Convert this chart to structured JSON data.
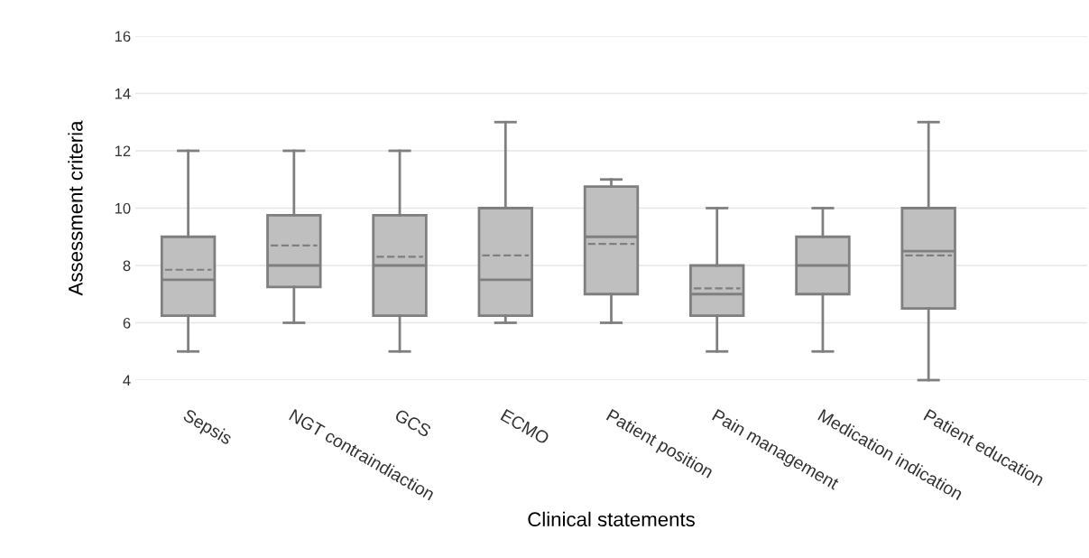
{
  "chart_data": {
    "type": "box",
    "xlabel": "Clinical statements",
    "ylabel": "Assessment criteria",
    "categories": [
      "Sepsis",
      "NGT contraindiaction",
      "GCS",
      "ECMO",
      "Patient position",
      "Pain management",
      "Medication indication",
      "Patient education"
    ],
    "boxes": [
      {
        "low": 5,
        "q1": 6.25,
        "median": 7.5,
        "q3": 9,
        "high": 12,
        "mean": 7.85
      },
      {
        "low": 6,
        "q1": 7.25,
        "median": 8,
        "q3": 9.75,
        "high": 12,
        "mean": 8.7
      },
      {
        "low": 5,
        "q1": 6.25,
        "median": 8,
        "q3": 9.75,
        "high": 12,
        "mean": 8.3
      },
      {
        "low": 6,
        "q1": 6.25,
        "median": 7.5,
        "q3": 10,
        "high": 13,
        "mean": 8.35
      },
      {
        "low": 6,
        "q1": 7,
        "median": 9,
        "q3": 10.75,
        "high": 11,
        "mean": 8.75
      },
      {
        "low": 5,
        "q1": 6.25,
        "median": 7,
        "q3": 8,
        "high": 10,
        "mean": 7.2
      },
      {
        "low": 5,
        "q1": 7,
        "median": 8,
        "q3": 9,
        "high": 10
      },
      {
        "low": 4,
        "q1": 6.5,
        "median": 8.5,
        "q3": 10,
        "high": 13,
        "mean": 8.35
      }
    ],
    "color": "#bfbfbf",
    "ylim": [
      4,
      16
    ],
    "yticks": [
      4,
      6,
      8,
      10,
      12,
      14,
      16
    ],
    "grid": "y"
  }
}
